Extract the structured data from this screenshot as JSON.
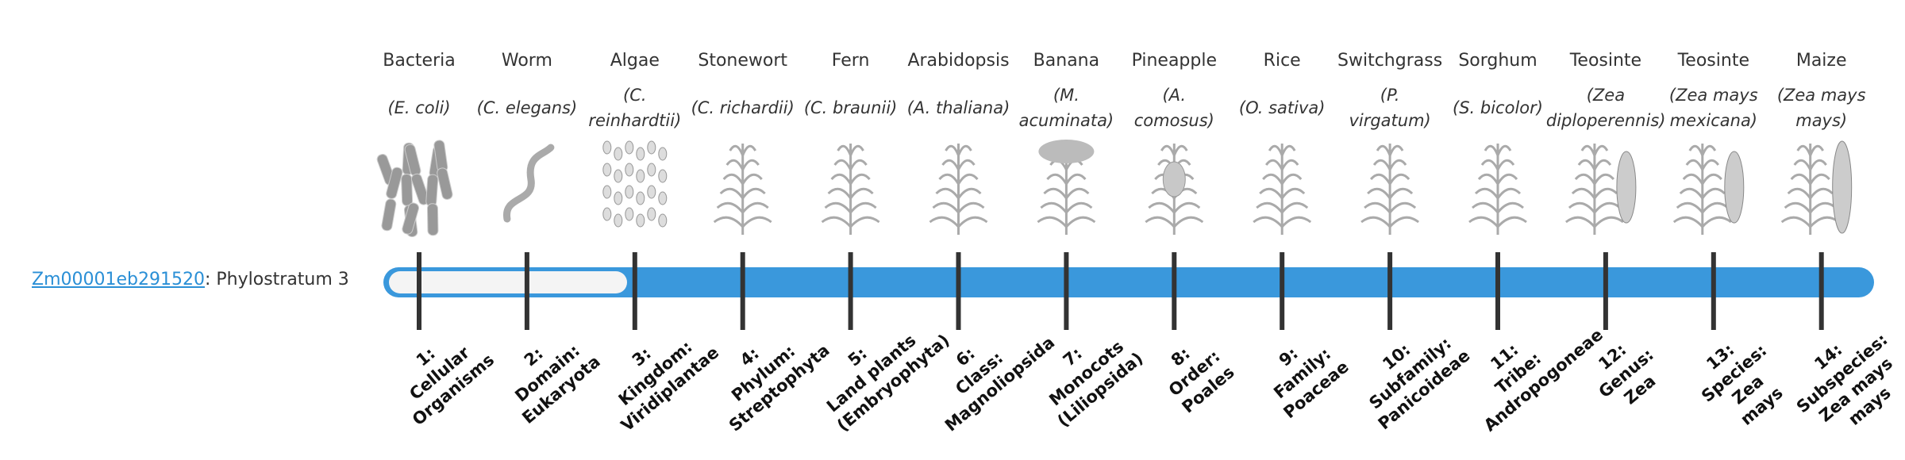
{
  "gene": {
    "id": "Zm00001eb291520",
    "text": ": Phylostratum 3"
  },
  "organisms": [
    {
      "name": "Bacteria",
      "species": [
        "(E. coli)"
      ],
      "stratum": [
        "1:",
        "Cellular",
        "Organisms"
      ]
    },
    {
      "name": "Worm",
      "species": [
        "(C. elegans)"
      ],
      "stratum": [
        "2:",
        "Domain:",
        "Eukaryota"
      ]
    },
    {
      "name": "Algae",
      "species": [
        "(C.",
        "reinhardtii)"
      ],
      "stratum": [
        "3:",
        "Kingdom:",
        "Viridiplantae"
      ]
    },
    {
      "name": "Stonewort",
      "species": [
        "(C. richardii)"
      ],
      "stratum": [
        "4:",
        "Phylum:",
        "Streptophyta"
      ]
    },
    {
      "name": "Fern",
      "species": [
        "(C. braunii)"
      ],
      "stratum": [
        "5:",
        "Land plants",
        "(Embryophyta)"
      ]
    },
    {
      "name": "Arabidopsis",
      "species": [
        "(A. thaliana)"
      ],
      "stratum": [
        "6:",
        "Class:",
        "Magnoliopsida"
      ]
    },
    {
      "name": "Banana",
      "species": [
        "(M.",
        "acuminata)"
      ],
      "stratum": [
        "7:",
        "Monocots",
        "(Liliopsida)"
      ]
    },
    {
      "name": "Pineapple",
      "species": [
        "(A.",
        "comosus)"
      ],
      "stratum": [
        "8:",
        "Order:",
        "Poales"
      ]
    },
    {
      "name": "Rice",
      "species": [
        "(O. sativa)"
      ],
      "stratum": [
        "9:",
        "Family:",
        "Poaceae"
      ]
    },
    {
      "name": "Switchgrass",
      "species": [
        "(P.",
        "virgatum)"
      ],
      "stratum": [
        "10:",
        "Subfamily:",
        "Panicoideae"
      ]
    },
    {
      "name": "Sorghum",
      "species": [
        "(S. bicolor)"
      ],
      "stratum": [
        "11:",
        "Tribe:",
        "Andropogoneae"
      ]
    },
    {
      "name": "Teosinte",
      "species": [
        "(Zea",
        "diploperennis)"
      ],
      "stratum": [
        "12:",
        "Genus:",
        "Zea"
      ]
    },
    {
      "name": "Teosinte",
      "species": [
        "(Zea mays",
        "mexicana)"
      ],
      "stratum": [
        "13:",
        "Species:",
        "Zea",
        "mays"
      ]
    },
    {
      "name": "Maize",
      "species": [
        "(Zea mays",
        "mays)"
      ],
      "stratum": [
        "14:",
        "Subspecies:",
        "Zea mays",
        "mays"
      ]
    }
  ]
}
